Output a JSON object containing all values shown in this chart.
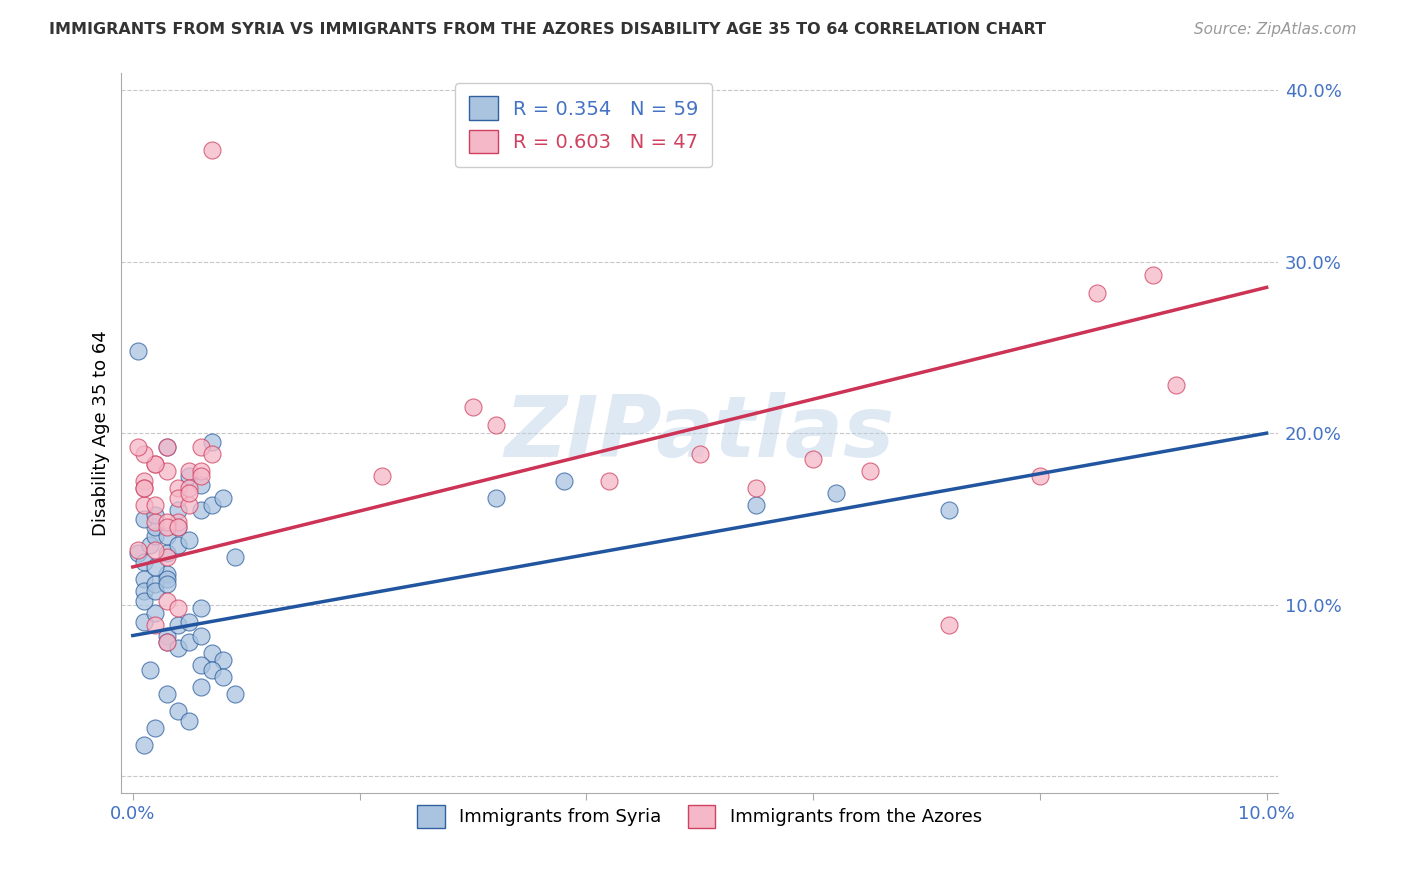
{
  "title": "IMMIGRANTS FROM SYRIA VS IMMIGRANTS FROM THE AZORES DISABILITY AGE 35 TO 64 CORRELATION CHART",
  "source": "Source: ZipAtlas.com",
  "tick_color": "#4472c4",
  "ylabel": "Disability Age 35 to 64",
  "background_color": "#ffffff",
  "grid_color": "#c8c8c8",
  "watermark": "ZIPatlas",
  "xlim": [
    -0.001,
    0.101
  ],
  "ylim": [
    -0.01,
    0.41
  ],
  "xticks": [
    0.0,
    0.02,
    0.04,
    0.06,
    0.08,
    0.1
  ],
  "yticks": [
    0.0,
    0.1,
    0.2,
    0.3,
    0.4
  ],
  "syria_color": "#aac4e0",
  "azores_color": "#f5b8c8",
  "syria_edge_color": "#3060a0",
  "azores_edge_color": "#d04060",
  "syria_line_color": "#2255a0",
  "azores_line_color": "#cc3355",
  "syria_R": 0.354,
  "syria_N": 59,
  "azores_R": 0.603,
  "azores_N": 47,
  "syria_line_x0": 0.0,
  "syria_line_y0": 0.082,
  "syria_line_x1": 0.1,
  "syria_line_y1": 0.2,
  "azores_line_x0": 0.0,
  "azores_line_y0": 0.122,
  "azores_line_x1": 0.1,
  "azores_line_y1": 0.285,
  "syria_x": [
    0.0005,
    0.001,
    0.001,
    0.0015,
    0.001,
    0.002,
    0.002,
    0.002,
    0.003,
    0.003,
    0.003,
    0.003,
    0.004,
    0.004,
    0.004,
    0.005,
    0.005,
    0.006,
    0.006,
    0.007,
    0.001,
    0.002,
    0.003,
    0.004,
    0.003,
    0.004,
    0.005,
    0.006,
    0.005,
    0.006,
    0.007,
    0.008,
    0.006,
    0.007,
    0.008,
    0.009,
    0.001,
    0.002,
    0.001,
    0.002,
    0.003,
    0.002,
    0.0005,
    0.003,
    0.002,
    0.001,
    0.004,
    0.003,
    0.0015,
    0.005,
    0.006,
    0.007,
    0.008,
    0.009,
    0.032,
    0.038,
    0.055,
    0.062,
    0.072
  ],
  "syria_y": [
    0.13,
    0.125,
    0.115,
    0.135,
    0.108,
    0.112,
    0.14,
    0.145,
    0.13,
    0.14,
    0.118,
    0.115,
    0.135,
    0.155,
    0.145,
    0.138,
    0.175,
    0.155,
    0.17,
    0.195,
    0.09,
    0.095,
    0.082,
    0.088,
    0.078,
    0.075,
    0.09,
    0.098,
    0.078,
    0.082,
    0.072,
    0.068,
    0.065,
    0.062,
    0.058,
    0.048,
    0.15,
    0.152,
    0.102,
    0.108,
    0.112,
    0.122,
    0.248,
    0.192,
    0.028,
    0.018,
    0.038,
    0.048,
    0.062,
    0.032,
    0.052,
    0.158,
    0.162,
    0.128,
    0.162,
    0.172,
    0.158,
    0.165,
    0.155
  ],
  "azores_x": [
    0.0005,
    0.001,
    0.001,
    0.002,
    0.002,
    0.003,
    0.003,
    0.003,
    0.004,
    0.004,
    0.004,
    0.005,
    0.005,
    0.005,
    0.006,
    0.006,
    0.007,
    0.002,
    0.003,
    0.004,
    0.001,
    0.002,
    0.001,
    0.0005,
    0.003,
    0.002,
    0.001,
    0.002,
    0.003,
    0.003,
    0.004,
    0.005,
    0.006,
    0.007,
    0.022,
    0.03,
    0.032,
    0.042,
    0.05,
    0.055,
    0.06,
    0.065,
    0.072,
    0.08,
    0.085,
    0.09,
    0.092
  ],
  "azores_y": [
    0.132,
    0.158,
    0.172,
    0.182,
    0.148,
    0.192,
    0.178,
    0.128,
    0.168,
    0.162,
    0.148,
    0.158,
    0.178,
    0.168,
    0.192,
    0.178,
    0.188,
    0.088,
    0.102,
    0.098,
    0.168,
    0.182,
    0.188,
    0.192,
    0.148,
    0.158,
    0.168,
    0.132,
    0.145,
    0.078,
    0.145,
    0.165,
    0.175,
    0.365,
    0.175,
    0.215,
    0.205,
    0.172,
    0.188,
    0.168,
    0.185,
    0.178,
    0.088,
    0.175,
    0.282,
    0.292,
    0.228
  ]
}
